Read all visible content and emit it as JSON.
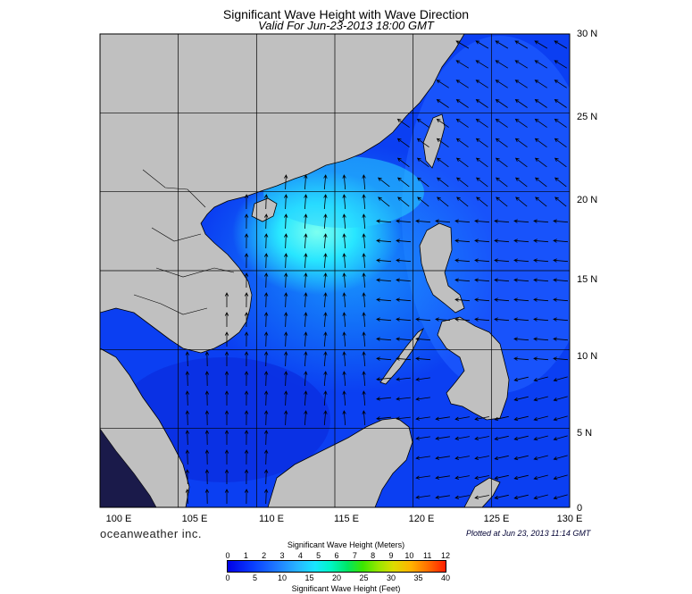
{
  "title": "Significant Wave Height with Wave Direction",
  "subtitle": "Valid For Jun-23-2013 18:00 GMT",
  "brand": "oceanweather inc.",
  "plotted": "Plotted at Jun 23, 2013 11:14 GMT",
  "lat_labels": [
    "30 N",
    "25 N",
    "20 N",
    "15 N",
    "10 N",
    "5 N",
    "0"
  ],
  "lon_labels": [
    "100 E",
    "105 E",
    "110 E",
    "115 E",
    "120 E",
    "125 E",
    "130 E"
  ],
  "legend": {
    "title_meters": "Significant Wave Height (Meters)",
    "title_feet": "Significant Wave Height (Feet)",
    "meter_ticks": [
      "0",
      "1",
      "2",
      "3",
      "4",
      "5",
      "6",
      "7",
      "8",
      "9",
      "10",
      "11",
      "12"
    ],
    "feet_ticks": [
      "0",
      "5",
      "10",
      "15",
      "20",
      "25",
      "30",
      "35",
      "40"
    ]
  },
  "colors": {
    "land": "#c0c0c0",
    "sea_low": "#0a3cf0",
    "sea_mid": "#2a78ff",
    "sea_high": "#46f0ff",
    "arrow": "#000000"
  },
  "map_extent": {
    "lon_range": [
      100,
      130
    ],
    "lat_range": [
      0,
      30
    ],
    "grid_step_deg": 5
  }
}
